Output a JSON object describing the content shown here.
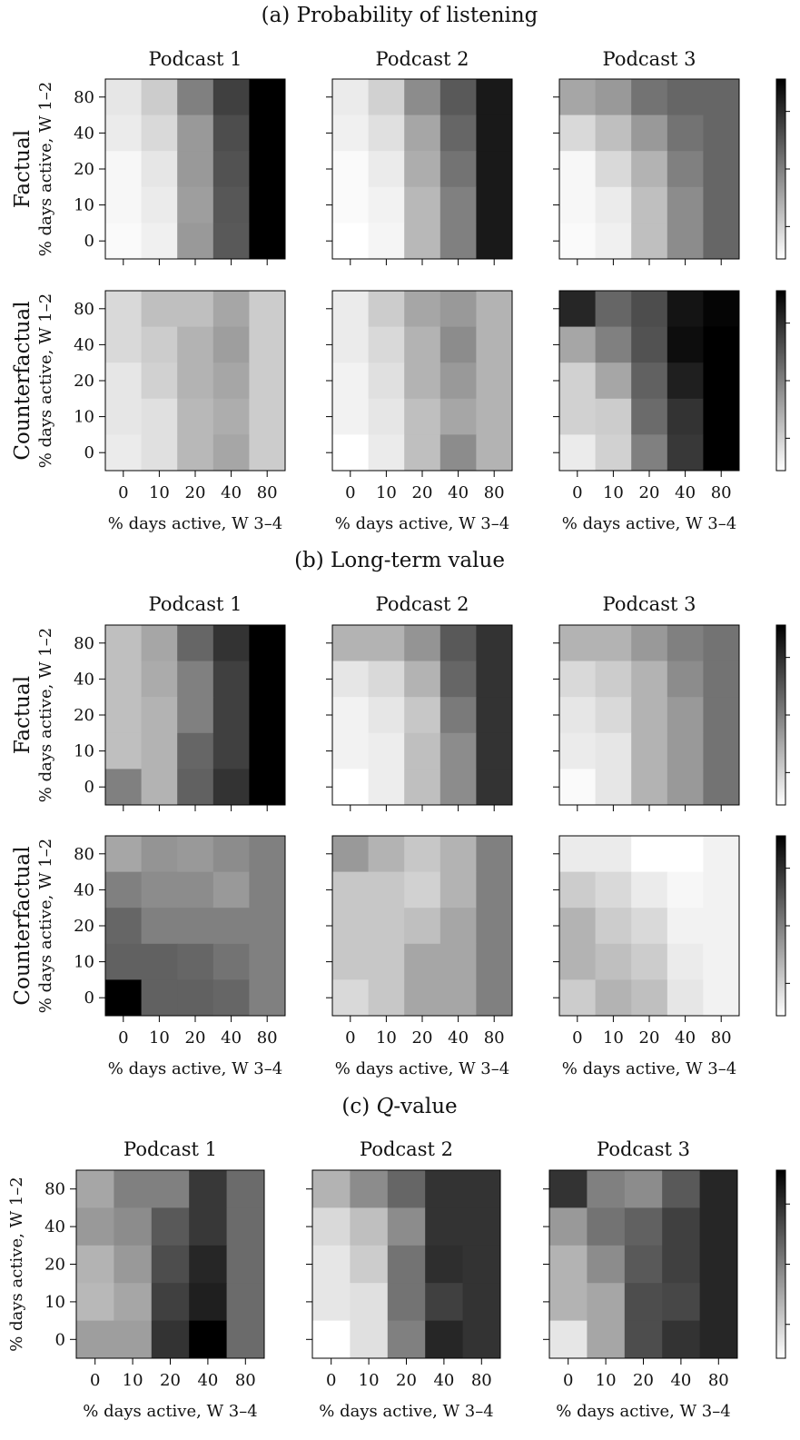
{
  "sections": [
    {
      "title": "(a) Probability of listening",
      "row_labels": [
        "Factual",
        "Counterfactual"
      ],
      "panels": [
        {
          "podcast": "Podcast 1",
          "factual": [
            [
              0.1,
              0.2,
              0.5,
              0.75,
              1.0
            ],
            [
              0.08,
              0.15,
              0.4,
              0.7,
              1.0
            ],
            [
              0.03,
              0.1,
              0.4,
              0.68,
              1.0
            ],
            [
              0.03,
              0.08,
              0.38,
              0.66,
              1.0
            ],
            [
              0.02,
              0.06,
              0.4,
              0.65,
              1.0
            ]
          ],
          "counterfactual": [
            [
              0.15,
              0.25,
              0.25,
              0.35,
              0.2
            ],
            [
              0.15,
              0.2,
              0.3,
              0.38,
              0.2
            ],
            [
              0.1,
              0.18,
              0.3,
              0.35,
              0.2
            ],
            [
              0.1,
              0.12,
              0.28,
              0.32,
              0.2
            ],
            [
              0.08,
              0.12,
              0.28,
              0.35,
              0.2
            ]
          ]
        },
        {
          "podcast": "Podcast 2",
          "factual": [
            [
              0.08,
              0.18,
              0.45,
              0.65,
              0.9
            ],
            [
              0.06,
              0.12,
              0.35,
              0.6,
              0.9
            ],
            [
              0.02,
              0.08,
              0.32,
              0.55,
              0.9
            ],
            [
              0.02,
              0.05,
              0.28,
              0.5,
              0.9
            ],
            [
              0.0,
              0.04,
              0.28,
              0.5,
              0.9
            ]
          ],
          "counterfactual": [
            [
              0.08,
              0.2,
              0.35,
              0.4,
              0.3
            ],
            [
              0.08,
              0.15,
              0.3,
              0.45,
              0.3
            ],
            [
              0.05,
              0.12,
              0.3,
              0.4,
              0.3
            ],
            [
              0.05,
              0.1,
              0.25,
              0.35,
              0.3
            ],
            [
              0.0,
              0.08,
              0.25,
              0.45,
              0.3
            ]
          ]
        },
        {
          "podcast": "Podcast 3",
          "factual": [
            [
              0.35,
              0.4,
              0.55,
              0.6,
              0.6
            ],
            [
              0.15,
              0.25,
              0.4,
              0.55,
              0.6
            ],
            [
              0.03,
              0.15,
              0.3,
              0.5,
              0.6
            ],
            [
              0.03,
              0.08,
              0.25,
              0.45,
              0.6
            ],
            [
              0.02,
              0.06,
              0.25,
              0.45,
              0.6
            ]
          ],
          "counterfactual": [
            [
              0.85,
              0.6,
              0.7,
              0.92,
              0.98
            ],
            [
              0.35,
              0.5,
              0.68,
              0.95,
              1.0
            ],
            [
              0.18,
              0.35,
              0.62,
              0.88,
              1.0
            ],
            [
              0.18,
              0.2,
              0.58,
              0.8,
              1.0
            ],
            [
              0.08,
              0.18,
              0.5,
              0.78,
              1.0
            ]
          ]
        }
      ]
    },
    {
      "title": "(b) Long-term value",
      "row_labels": [
        "Factual",
        "Counterfactual"
      ],
      "panels": [
        {
          "podcast": "Podcast 1",
          "factual": [
            [
              0.25,
              0.35,
              0.6,
              0.8,
              1.0
            ],
            [
              0.25,
              0.33,
              0.5,
              0.75,
              1.0
            ],
            [
              0.25,
              0.3,
              0.5,
              0.75,
              1.0
            ],
            [
              0.25,
              0.3,
              0.6,
              0.75,
              1.0
            ],
            [
              0.5,
              0.3,
              0.62,
              0.8,
              1.0
            ]
          ],
          "counterfactual": [
            [
              0.35,
              0.42,
              0.4,
              0.45,
              0.5
            ],
            [
              0.5,
              0.45,
              0.45,
              0.4,
              0.5
            ],
            [
              0.6,
              0.5,
              0.5,
              0.5,
              0.5
            ],
            [
              0.62,
              0.62,
              0.6,
              0.55,
              0.5
            ],
            [
              1.0,
              0.62,
              0.62,
              0.6,
              0.5
            ]
          ]
        },
        {
          "podcast": "Podcast 2",
          "factual": [
            [
              0.3,
              0.3,
              0.42,
              0.65,
              0.8
            ],
            [
              0.1,
              0.15,
              0.3,
              0.6,
              0.8
            ],
            [
              0.05,
              0.1,
              0.22,
              0.52,
              0.8
            ],
            [
              0.05,
              0.07,
              0.25,
              0.45,
              0.8
            ],
            [
              0.0,
              0.07,
              0.25,
              0.45,
              0.8
            ]
          ],
          "counterfactual": [
            [
              0.4,
              0.3,
              0.22,
              0.3,
              0.5
            ],
            [
              0.22,
              0.22,
              0.18,
              0.3,
              0.5
            ],
            [
              0.22,
              0.22,
              0.25,
              0.35,
              0.5
            ],
            [
              0.22,
              0.22,
              0.35,
              0.35,
              0.5
            ],
            [
              0.15,
              0.22,
              0.35,
              0.35,
              0.5
            ]
          ]
        },
        {
          "podcast": "Podcast 3",
          "factual": [
            [
              0.3,
              0.3,
              0.4,
              0.5,
              0.55
            ],
            [
              0.15,
              0.2,
              0.3,
              0.45,
              0.55
            ],
            [
              0.1,
              0.15,
              0.3,
              0.4,
              0.55
            ],
            [
              0.08,
              0.1,
              0.3,
              0.4,
              0.55
            ],
            [
              0.02,
              0.1,
              0.3,
              0.4,
              0.55
            ]
          ],
          "counterfactual": [
            [
              0.08,
              0.08,
              0.0,
              0.0,
              0.05
            ],
            [
              0.2,
              0.15,
              0.08,
              0.03,
              0.05
            ],
            [
              0.3,
              0.2,
              0.15,
              0.05,
              0.05
            ],
            [
              0.3,
              0.25,
              0.2,
              0.08,
              0.05
            ],
            [
              0.2,
              0.3,
              0.25,
              0.1,
              0.05
            ]
          ]
        }
      ]
    },
    {
      "title": "(c) Q-value",
      "title_italic": "Q",
      "title_rest": "-value",
      "row_labels": [
        ""
      ],
      "panels": [
        {
          "podcast": "Podcast 1",
          "single": [
            [
              0.35,
              0.5,
              0.5,
              0.78,
              0.58
            ],
            [
              0.4,
              0.45,
              0.65,
              0.78,
              0.58
            ],
            [
              0.3,
              0.4,
              0.7,
              0.85,
              0.58
            ],
            [
              0.28,
              0.35,
              0.75,
              0.88,
              0.58
            ],
            [
              0.38,
              0.38,
              0.8,
              1.0,
              0.58
            ]
          ]
        },
        {
          "podcast": "Podcast 2",
          "single": [
            [
              0.3,
              0.45,
              0.6,
              0.8,
              0.8
            ],
            [
              0.15,
              0.25,
              0.45,
              0.8,
              0.8
            ],
            [
              0.1,
              0.2,
              0.55,
              0.82,
              0.8
            ],
            [
              0.1,
              0.12,
              0.55,
              0.75,
              0.8
            ],
            [
              0.0,
              0.12,
              0.5,
              0.85,
              0.8
            ]
          ]
        },
        {
          "podcast": "Podcast 3",
          "single": [
            [
              0.8,
              0.5,
              0.45,
              0.65,
              0.85
            ],
            [
              0.4,
              0.55,
              0.62,
              0.75,
              0.85
            ],
            [
              0.3,
              0.45,
              0.65,
              0.75,
              0.85
            ],
            [
              0.3,
              0.35,
              0.7,
              0.72,
              0.85
            ],
            [
              0.1,
              0.35,
              0.7,
              0.8,
              0.85
            ]
          ]
        }
      ]
    }
  ],
  "y_axis_label": "% days active, W 1–2",
  "x_axis_label": "% days active, W 3–4",
  "y_ticks": [
    "80",
    "40",
    "20",
    "10",
    "0"
  ],
  "x_ticks": [
    "0",
    "10",
    "20",
    "40",
    "80"
  ],
  "colormap": "grays",
  "colorbar_low_color": "#ffffff",
  "colorbar_high_color": "#000000"
}
